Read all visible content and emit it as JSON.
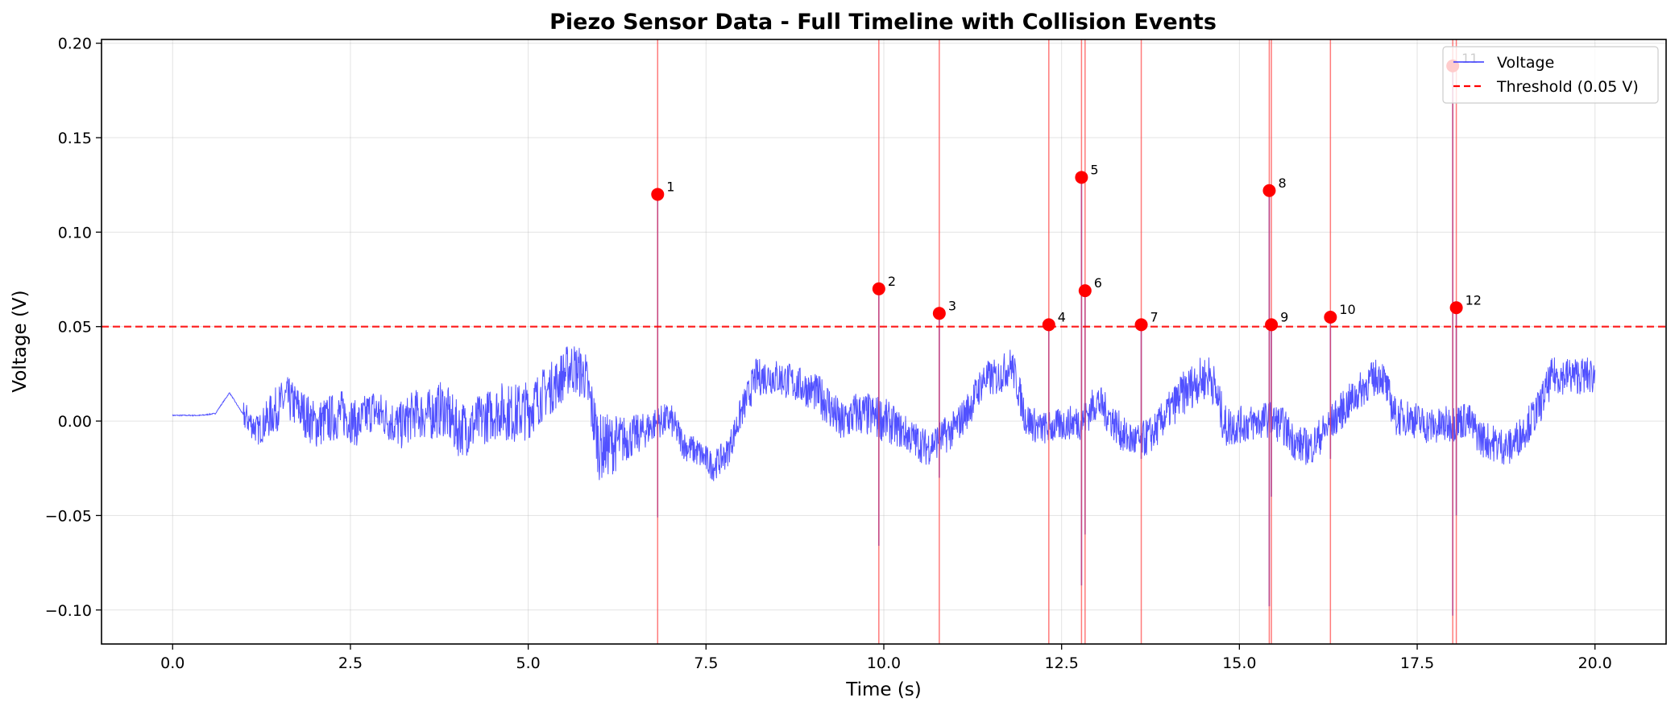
{
  "chart_data": {
    "type": "line",
    "title": "Piezo Sensor Data - Full Timeline with Collision Events",
    "xlabel": "Time (s)",
    "ylabel": "Voltage (V)",
    "xlim": [
      -1.0,
      21.0
    ],
    "ylim": [
      -0.118,
      0.202
    ],
    "xticks": [
      0.0,
      2.5,
      5.0,
      7.5,
      10.0,
      12.5,
      15.0,
      17.5,
      20.0
    ],
    "xtick_labels": [
      "0.0",
      "2.5",
      "5.0",
      "7.5",
      "10.0",
      "12.5",
      "15.0",
      "17.5",
      "20.0"
    ],
    "yticks": [
      -0.1,
      -0.05,
      0.0,
      0.05,
      0.1,
      0.15,
      0.2
    ],
    "ytick_labels": [
      "−0.10",
      "−0.05",
      "0.00",
      "0.05",
      "0.10",
      "0.15",
      "0.20"
    ],
    "grid": true,
    "legend_position": "top-right",
    "colors": {
      "voltage": "#3333ff",
      "threshold": "#ff0000",
      "event_marker": "#ff0000",
      "event_line": "#ff4d4d"
    },
    "series": [
      {
        "name": "Voltage",
        "x": [
          0.0,
          0.5,
          1.0,
          1.2,
          1.4,
          1.6,
          1.8,
          2.0,
          2.2,
          2.4,
          2.6,
          2.8,
          3.0,
          3.2,
          3.4,
          3.6,
          3.8,
          4.0,
          4.2,
          4.4,
          4.6,
          4.8,
          5.0,
          5.2,
          5.4,
          5.6,
          5.8,
          6.0,
          6.2,
          6.4,
          6.6,
          6.8,
          7.0,
          7.2,
          7.4,
          7.6,
          7.8,
          8.0,
          8.2,
          8.4,
          8.6,
          8.8,
          9.0,
          9.2,
          9.4,
          9.6,
          9.8,
          10.0,
          10.2,
          10.4,
          10.6,
          10.8,
          11.0,
          11.2,
          11.4,
          11.6,
          11.8,
          12.0,
          12.2,
          12.4,
          12.6,
          12.8,
          13.0,
          13.2,
          13.4,
          13.6,
          13.8,
          14.0,
          14.2,
          14.4,
          14.6,
          14.8,
          15.0,
          15.2,
          15.4,
          15.6,
          15.8,
          16.0,
          16.2,
          16.4,
          16.6,
          16.8,
          17.0,
          17.2,
          17.4,
          17.6,
          17.8,
          18.0,
          18.2,
          18.4,
          18.6,
          18.8,
          19.0,
          19.2,
          19.4,
          19.6,
          19.8,
          20.0
        ],
        "values": [
          0.003,
          0.003,
          0.003,
          0.004,
          0.015,
          0.003,
          -0.005,
          0.004,
          0.012,
          0.006,
          -0.002,
          0.001,
          0.004,
          -0.002,
          0.006,
          0.002,
          -0.003,
          0.004,
          0.003,
          0.007,
          -0.004,
          -0.003,
          0.002,
          0.006,
          0.004,
          0.006,
          0.014,
          0.02,
          0.029,
          0.024,
          -0.014,
          -0.012,
          -0.009,
          -0.006,
          -0.001,
          0.001,
          -0.013,
          -0.017,
          -0.024,
          -0.017,
          0.005,
          0.023,
          0.024,
          0.022,
          0.019,
          0.016,
          0.01,
          -0.002,
          0.004,
          0.003,
          0.001,
          -0.004,
          -0.009,
          -0.014,
          -0.009,
          -0.004,
          0.007,
          0.022,
          0.023,
          0.03,
          0.001,
          -0.004,
          -0.003,
          -0.001,
          0.0,
          0.011,
          0.001,
          -0.009,
          -0.011,
          -0.006,
          0.005,
          0.014,
          0.021,
          0.024,
          -0.003,
          -0.002,
          -0.001,
          0.001,
          -0.002,
          -0.012,
          -0.014,
          -0.005,
          0.004,
          0.012,
          0.02,
          0.025,
          0.002,
          0.002,
          -0.002,
          -0.003,
          -0.001,
          0.001,
          -0.009,
          -0.012,
          -0.014,
          -0.005,
          0.006,
          0.024
        ],
        "noise_amplitude": [
          0.0,
          0.0,
          0.011,
          0.01,
          0.01,
          0.008,
          0.008,
          0.012,
          0.012,
          0.012,
          0.013,
          0.013,
          0.013,
          0.012,
          0.012,
          0.012,
          0.013,
          0.013,
          0.014,
          0.015,
          0.015,
          0.015,
          0.014,
          0.015,
          0.016,
          0.016,
          0.014,
          0.014,
          0.014,
          0.014,
          0.018,
          0.016,
          0.012,
          0.01,
          0.009,
          0.009,
          0.008,
          0.008,
          0.008,
          0.008,
          0.009,
          0.01,
          0.01,
          0.01,
          0.01,
          0.01,
          0.012,
          0.012,
          0.012,
          0.012,
          0.012,
          0.01,
          0.01,
          0.01,
          0.01,
          0.01,
          0.01,
          0.01,
          0.01,
          0.01,
          0.01,
          0.009,
          0.009,
          0.009,
          0.01,
          0.01,
          0.01,
          0.01,
          0.01,
          0.01,
          0.01,
          0.012,
          0.012,
          0.012,
          0.012,
          0.01,
          0.01,
          0.01,
          0.01,
          0.01,
          0.01,
          0.01,
          0.01,
          0.01,
          0.01,
          0.01,
          0.01,
          0.01,
          0.01,
          0.01,
          0.01,
          0.01,
          0.01,
          0.01,
          0.01,
          0.01,
          0.01,
          0.01
        ]
      },
      {
        "name": "Threshold (0.05 V)",
        "type": "hline",
        "y": 0.05
      }
    ],
    "events": [
      {
        "label": "1",
        "x": 6.82,
        "y": 0.12,
        "min": -0.051
      },
      {
        "label": "2",
        "x": 9.93,
        "y": 0.07,
        "min": -0.066
      },
      {
        "label": "3",
        "x": 10.78,
        "y": 0.057,
        "min": -0.03
      },
      {
        "label": "4",
        "x": 12.32,
        "y": 0.051,
        "min": 0.0
      },
      {
        "label": "5",
        "x": 12.78,
        "y": 0.129,
        "min": -0.087
      },
      {
        "label": "6",
        "x": 12.83,
        "y": 0.069,
        "min": -0.06
      },
      {
        "label": "7",
        "x": 13.62,
        "y": 0.051,
        "min": -0.02
      },
      {
        "label": "8",
        "x": 15.42,
        "y": 0.122,
        "min": -0.098
      },
      {
        "label": "9",
        "x": 15.45,
        "y": 0.051,
        "min": -0.04
      },
      {
        "label": "10",
        "x": 16.28,
        "y": 0.055,
        "min": -0.02
      },
      {
        "label": "11",
        "x": 18.0,
        "y": 0.188,
        "min": -0.103
      },
      {
        "label": "12",
        "x": 18.05,
        "y": 0.06,
        "min": -0.05
      }
    ],
    "legend": [
      {
        "label": "Voltage",
        "style": "solid",
        "color": "#3333ff"
      },
      {
        "label": "Threshold (0.05 V)",
        "style": "dashed",
        "color": "#ff0000"
      }
    ]
  }
}
